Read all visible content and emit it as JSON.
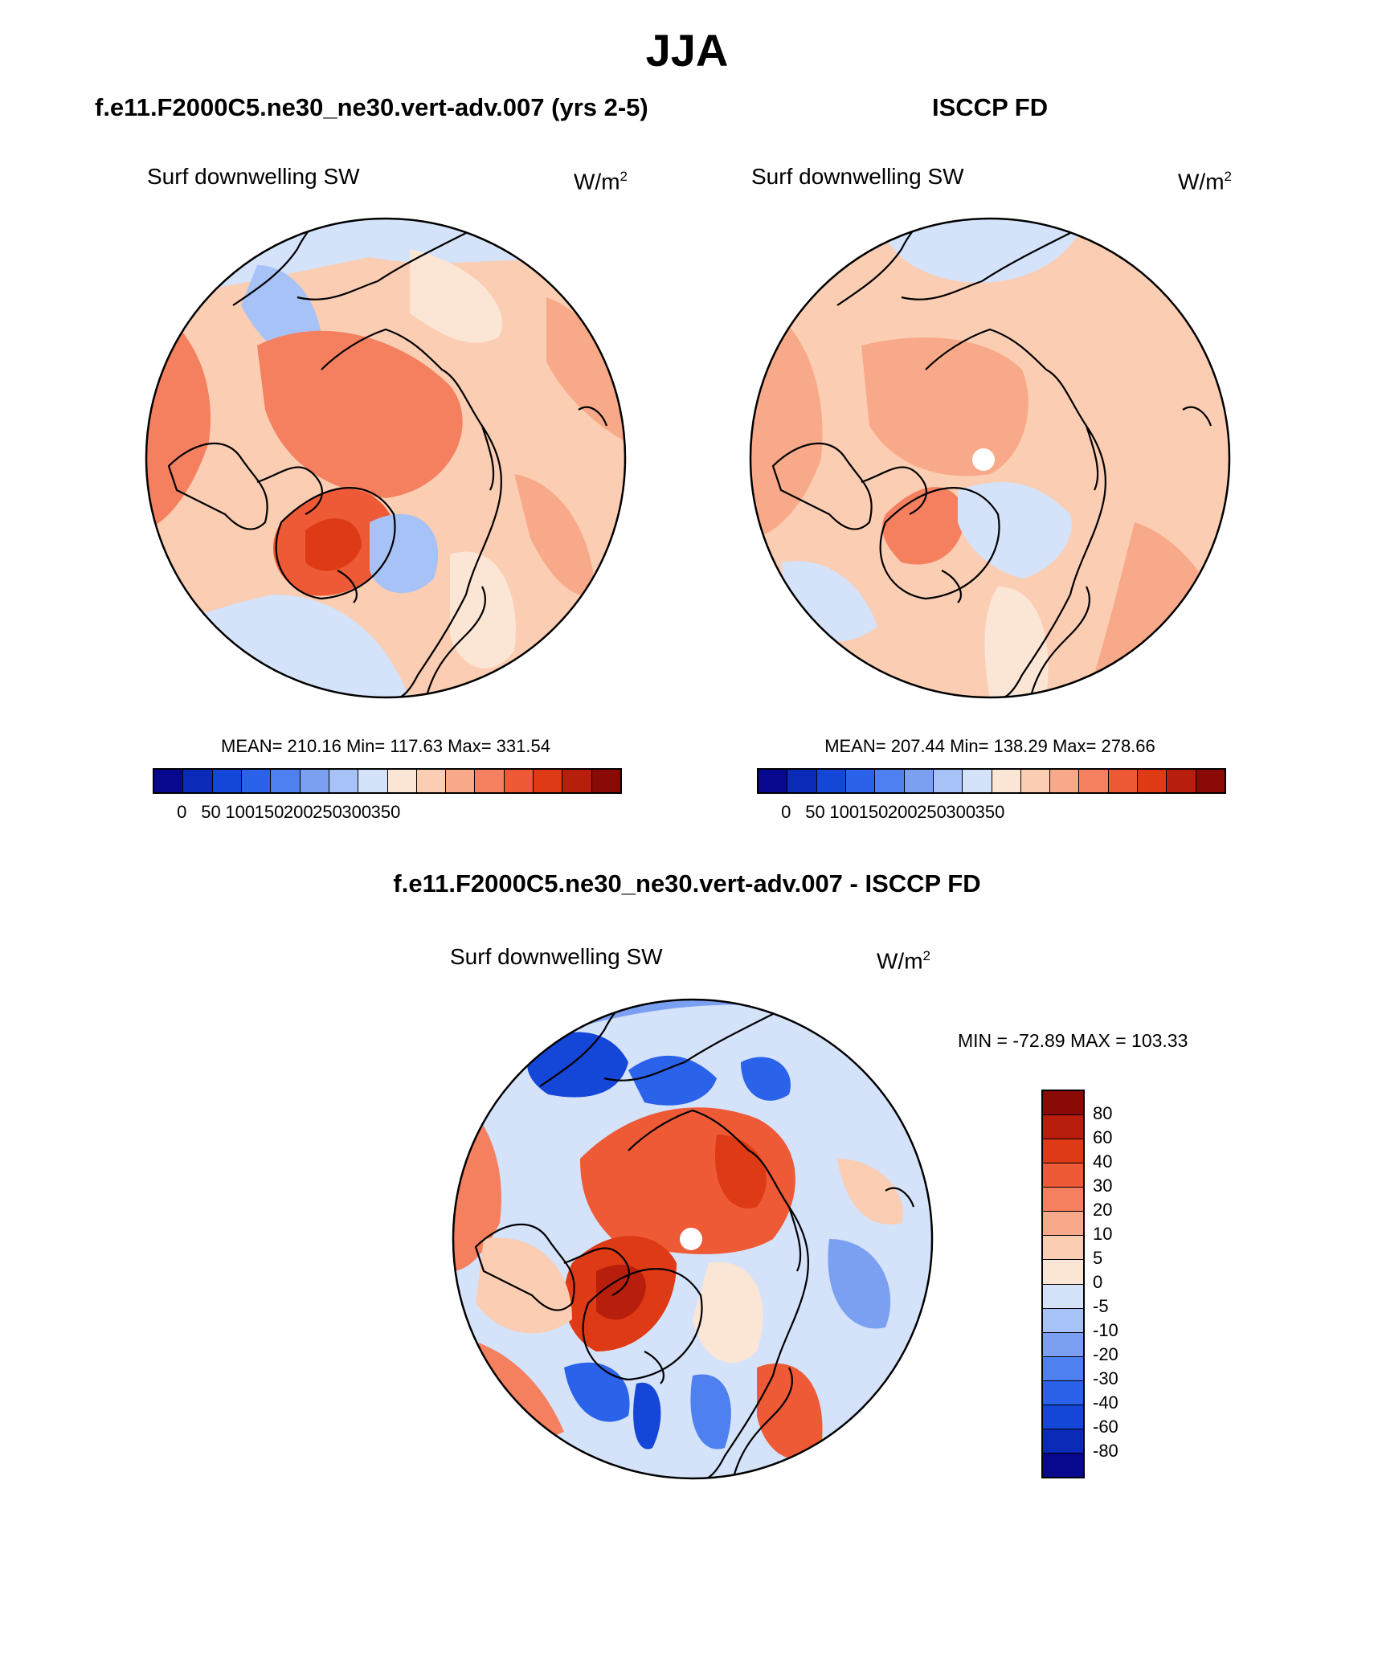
{
  "title": "JJA",
  "panels": {
    "model": {
      "title": "f.e11.F2000C5.ne30_ne30.vert-adv.007 (yrs 2-5)",
      "variable": "Surf downwelling SW",
      "units": "W/m",
      "units_sup": "2",
      "stats": "MEAN= 210.16  Min= 117.63  Max= 331.54"
    },
    "obs": {
      "title": "ISCCP FD",
      "variable": "Surf downwelling SW",
      "units": "W/m",
      "units_sup": "2",
      "stats": "MEAN= 207.44  Min= 138.29  Max= 278.66"
    },
    "diff": {
      "title": "f.e11.F2000C5.ne30_ne30.vert-adv.007 - ISCCP FD",
      "variable": "Surf downwelling SW",
      "units": "W/m",
      "units_sup": "2",
      "stats": "MIN = -72.89 MAX = 103.33"
    }
  },
  "colorbar_abs": {
    "colors": [
      "#08088f",
      "#0a2ab8",
      "#1446d8",
      "#2a62ea",
      "#4f80ef",
      "#7ba0f2",
      "#a7c2f6",
      "#d4e2fa",
      "#fbe6d6",
      "#fbcdb2",
      "#f8a98a",
      "#f4805f",
      "#ee5a36",
      "#de3a16",
      "#b81e0c",
      "#8a0a06"
    ],
    "ticks": [
      "0",
      "50",
      "100",
      "150",
      "200",
      "250",
      "300",
      "350"
    ]
  },
  "colorbar_diff": {
    "colors": [
      "#8a0a06",
      "#b81e0c",
      "#de3a16",
      "#ee5a36",
      "#f4805f",
      "#f8a98a",
      "#fbcdb2",
      "#fbe6d6",
      "#d4e2fa",
      "#a7c2f6",
      "#7ba0f2",
      "#4f80ef",
      "#2a62ea",
      "#1446d8",
      "#0a2ab8",
      "#08088f"
    ],
    "ticks": [
      "80",
      "60",
      "40",
      "30",
      "20",
      "10",
      "5",
      "0",
      "-5",
      "-10",
      "-20",
      "-30",
      "-40",
      "-60",
      "-80"
    ]
  }
}
